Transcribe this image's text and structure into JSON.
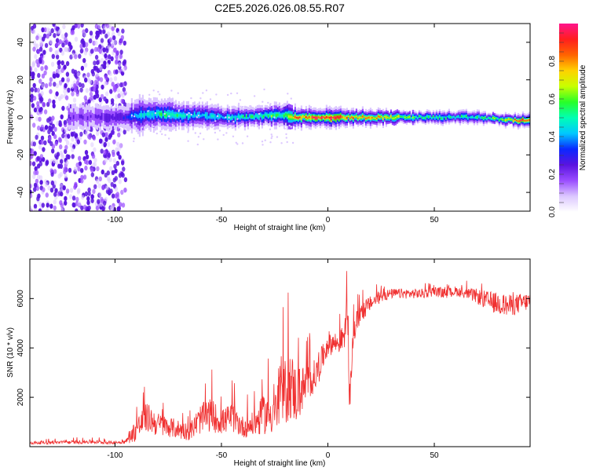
{
  "page_title": "C2E5.2026.026.08.55.R07",
  "colors": {
    "snr_line": "#f03030",
    "frame": "#000000",
    "background": "#ffffff"
  },
  "chart_data": [
    {
      "type": "heatmap",
      "title": "C2E5.2026.026.08.55.R07",
      "xlabel": "Height of straight line (km)",
      "ylabel": "Frequency (Hz)",
      "xlim": [
        -140,
        95
      ],
      "ylim": [
        -50,
        50
      ],
      "x_ticks": [
        -100,
        -50,
        0,
        50
      ],
      "y_ticks": [
        -40,
        -20,
        0,
        20,
        40
      ],
      "colorbar": {
        "label": "Normalized spectral amplitude",
        "range": [
          0,
          1
        ],
        "ticks": [
          0.0,
          0.2,
          0.4,
          0.6,
          0.8
        ],
        "tick_labels": [
          "0.0",
          "0.2",
          "0.4",
          "0.6",
          "0.8"
        ],
        "colormap": [
          "#ffffff",
          "#dcc8ff",
          "#9a4cff",
          "#5a14e0",
          "#0a28ff",
          "#00c8ff",
          "#00ffb4",
          "#28ff28",
          "#c8ff00",
          "#ffd200",
          "#ff6400",
          "#ff1e1e",
          "#ff148c"
        ]
      },
      "noise_region": {
        "x_range": [
          -140,
          -95
        ],
        "freq_range": [
          -50,
          50
        ],
        "level": 0.05
      },
      "ridge": {
        "description": "signal band around 0 Hz, narrowing and strengthening toward high altitude",
        "x": [
          -120,
          -100,
          -95,
          -90,
          -80,
          -70,
          -60,
          -50,
          -40,
          -30,
          -20,
          -15,
          -10,
          0,
          10,
          20,
          30,
          40,
          50,
          60,
          70,
          80,
          95
        ],
        "center_hz": [
          0,
          0,
          0,
          1,
          2,
          1,
          1,
          0,
          0,
          1,
          1,
          0,
          0,
          0,
          0,
          0,
          0,
          0,
          0,
          0,
          0,
          -1,
          -2
        ],
        "half_width_hz": [
          6,
          6,
          5,
          7,
          6,
          5,
          5,
          4,
          4,
          4,
          5,
          3,
          3,
          3,
          2.5,
          2.5,
          2.5,
          2.5,
          2.5,
          2.5,
          2.5,
          2,
          2
        ],
        "peak_amplitude": [
          0.2,
          0.25,
          0.3,
          0.45,
          0.5,
          0.5,
          0.45,
          0.45,
          0.5,
          0.55,
          0.55,
          0.8,
          0.85,
          0.95,
          0.8,
          0.75,
          0.7,
          0.55,
          0.5,
          0.5,
          0.5,
          0.6,
          0.98
        ]
      }
    },
    {
      "type": "line",
      "xlabel": "Height of straight line (km)",
      "ylabel": "SNR (10 * v/v)",
      "xlim": [
        -140,
        95
      ],
      "ylim": [
        0,
        7600
      ],
      "x_ticks": [
        -100,
        -50,
        0,
        50
      ],
      "y_ticks": [
        2000,
        4000,
        6000
      ],
      "series": [
        {
          "name": "SNR",
          "x": [
            -140,
            -120,
            -112,
            -100,
            -95,
            -90,
            -85,
            -80,
            -75,
            -70,
            -65,
            -60,
            -55,
            -50,
            -45,
            -40,
            -35,
            -30,
            -25,
            -20,
            -18,
            -15,
            -10,
            -5,
            0,
            5,
            8,
            9,
            10,
            12,
            15,
            20,
            25,
            30,
            35,
            40,
            45,
            50,
            55,
            60,
            65,
            70,
            75,
            80,
            85,
            90,
            95
          ],
          "mean": [
            150,
            180,
            200,
            160,
            200,
            700,
            1200,
            900,
            800,
            700,
            600,
            1100,
            1300,
            1000,
            1200,
            800,
            900,
            1300,
            1400,
            2200,
            2600,
            2100,
            2500,
            3000,
            4200,
            4200,
            4500,
            6500,
            1500,
            4600,
            5400,
            5800,
            6100,
            6200,
            6200,
            6200,
            6200,
            6300,
            6200,
            6300,
            6200,
            6100,
            5900,
            5800,
            5700,
            5800,
            5900
          ],
          "noise": [
            60,
            70,
            80,
            60,
            80,
            500,
            600,
            500,
            400,
            400,
            350,
            600,
            700,
            500,
            600,
            450,
            500,
            800,
            900,
            1400,
            1500,
            1200,
            800,
            600,
            500,
            450,
            500,
            1200,
            600,
            500,
            450,
            300,
            250,
            200,
            200,
            200,
            200,
            200,
            200,
            200,
            200,
            300,
            400,
            450,
            450,
            400,
            350
          ]
        }
      ]
    }
  ]
}
